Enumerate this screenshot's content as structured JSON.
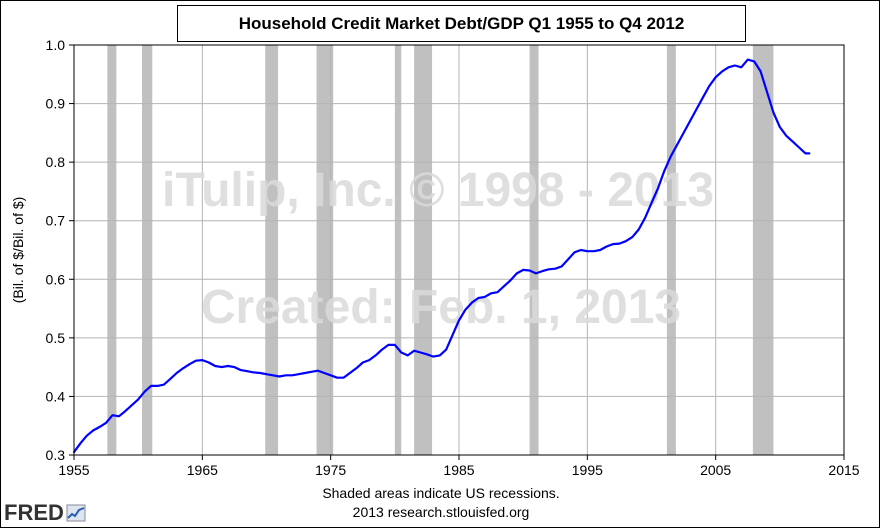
{
  "chart_data": {
    "type": "line",
    "title": "Household Credit Market Debt/GDP Q1 1955 to Q4 2012",
    "ylabel": "(Bil. of $/Bil. of $)",
    "xlabel": "",
    "xlim": [
      1955,
      2015
    ],
    "ylim": [
      0.3,
      1.0
    ],
    "xticks": [
      1955,
      1965,
      1975,
      1985,
      1995,
      2005,
      2015
    ],
    "yticks": [
      "0.3",
      "0.4",
      "0.5",
      "0.6",
      "0.7",
      "0.8",
      "0.9",
      "1.0"
    ],
    "grid": true,
    "line_color": "#0000ff",
    "recession_color": "#c0c0c0",
    "recessions": [
      [
        1957.6,
        1958.3
      ],
      [
        1960.3,
        1961.1
      ],
      [
        1969.9,
        1970.9
      ],
      [
        1973.9,
        1975.2
      ],
      [
        1980.0,
        1980.5
      ],
      [
        1981.5,
        1982.9
      ],
      [
        1990.5,
        1991.2
      ],
      [
        2001.2,
        2001.9
      ],
      [
        2007.9,
        2009.5
      ]
    ],
    "series": [
      {
        "x": [
          1955.0,
          1955.5,
          1956.0,
          1956.5,
          1957.0,
          1957.5,
          1958.0,
          1958.5,
          1959.0,
          1959.5,
          1960.0,
          1960.5,
          1961.0,
          1961.5,
          1962.0,
          1962.5,
          1963.0,
          1963.5,
          1964.0,
          1964.5,
          1965.0,
          1965.5,
          1966.0,
          1966.5,
          1967.0,
          1967.5,
          1968.0,
          1968.5,
          1969.0,
          1969.5,
          1970.0,
          1970.5,
          1971.0,
          1971.5,
          1972.0,
          1972.5,
          1973.0,
          1973.5,
          1974.0,
          1974.5,
          1975.0,
          1975.5,
          1976.0,
          1976.5,
          1977.0,
          1977.5,
          1978.0,
          1978.5,
          1979.0,
          1979.5,
          1980.0,
          1980.5,
          1981.0,
          1981.5,
          1982.0,
          1982.5,
          1983.0,
          1983.5,
          1984.0,
          1984.5,
          1985.0,
          1985.5,
          1986.0,
          1986.5,
          1987.0,
          1987.5,
          1988.0,
          1988.5,
          1989.0,
          1989.5,
          1990.0,
          1990.5,
          1991.0,
          1991.5,
          1992.0,
          1992.5,
          1993.0,
          1993.5,
          1994.0,
          1994.5,
          1995.0,
          1995.5,
          1996.0,
          1996.5,
          1997.0,
          1997.5,
          1998.0,
          1998.5,
          1999.0,
          1999.5,
          2000.0,
          2000.5,
          2001.0,
          2001.5,
          2002.0,
          2002.5,
          2003.0,
          2003.5,
          2004.0,
          2004.5,
          2005.0,
          2005.5,
          2006.0,
          2006.5,
          2007.0,
          2007.5,
          2008.0,
          2008.5,
          2009.0,
          2009.5,
          2010.0,
          2010.5,
          2011.0,
          2011.5,
          2012.0,
          2012.3
        ],
        "values": [
          0.305,
          0.32,
          0.333,
          0.342,
          0.348,
          0.355,
          0.368,
          0.366,
          0.375,
          0.385,
          0.395,
          0.408,
          0.418,
          0.418,
          0.42,
          0.43,
          0.44,
          0.448,
          0.455,
          0.461,
          0.462,
          0.458,
          0.452,
          0.45,
          0.452,
          0.45,
          0.445,
          0.443,
          0.441,
          0.44,
          0.438,
          0.436,
          0.434,
          0.436,
          0.436,
          0.438,
          0.44,
          0.442,
          0.444,
          0.44,
          0.436,
          0.432,
          0.432,
          0.44,
          0.448,
          0.458,
          0.462,
          0.47,
          0.48,
          0.488,
          0.488,
          0.475,
          0.47,
          0.478,
          0.475,
          0.472,
          0.468,
          0.47,
          0.48,
          0.505,
          0.53,
          0.548,
          0.56,
          0.568,
          0.57,
          0.576,
          0.578,
          0.588,
          0.598,
          0.61,
          0.616,
          0.615,
          0.61,
          0.614,
          0.617,
          0.618,
          0.622,
          0.634,
          0.646,
          0.65,
          0.648,
          0.648,
          0.65,
          0.656,
          0.66,
          0.661,
          0.665,
          0.672,
          0.685,
          0.705,
          0.73,
          0.755,
          0.785,
          0.81,
          0.83,
          0.85,
          0.87,
          0.89,
          0.91,
          0.93,
          0.945,
          0.955,
          0.962,
          0.965,
          0.962,
          0.975,
          0.972,
          0.955,
          0.92,
          0.885,
          0.86,
          0.845,
          0.835,
          0.825,
          0.815,
          0.815
        ]
      }
    ]
  },
  "watermarks": [
    "iTulip, Inc. © 1998 - 2013",
    "Created: Feb. 1, 2013"
  ],
  "footer": {
    "note": "Shaded areas indicate US recessions.",
    "source": "2013 research.stlouisfed.org"
  },
  "logo": {
    "text": "FRED",
    "icon": "chart-trend-icon"
  }
}
